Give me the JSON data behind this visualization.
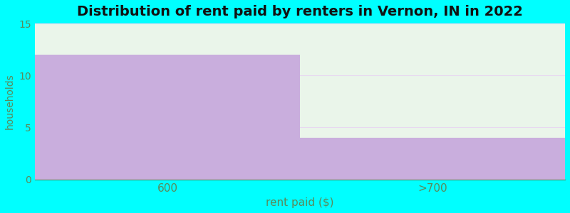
{
  "categories": [
    "600",
    ">700"
  ],
  "values": [
    12,
    4
  ],
  "bar_color": "#c9aedd",
  "background_outer": "#00FFFF",
  "background_inner": "#eaf5ea",
  "title": "Distribution of rent paid by renters in Vernon, IN in 2022",
  "title_fontsize": 14,
  "title_fontweight": "bold",
  "xlabel": "rent paid ($)",
  "ylabel": "households",
  "xlabel_fontsize": 11,
  "ylabel_fontsize": 10,
  "ylabel_color": "#5a8a5a",
  "xlabel_color": "#5a8a5a",
  "tick_label_color": "#5a8a5a",
  "ylim": [
    0,
    15
  ],
  "yticks": [
    0,
    5,
    10,
    15
  ],
  "grid_color": "#e8d8f0",
  "grid_linewidth": 0.8
}
